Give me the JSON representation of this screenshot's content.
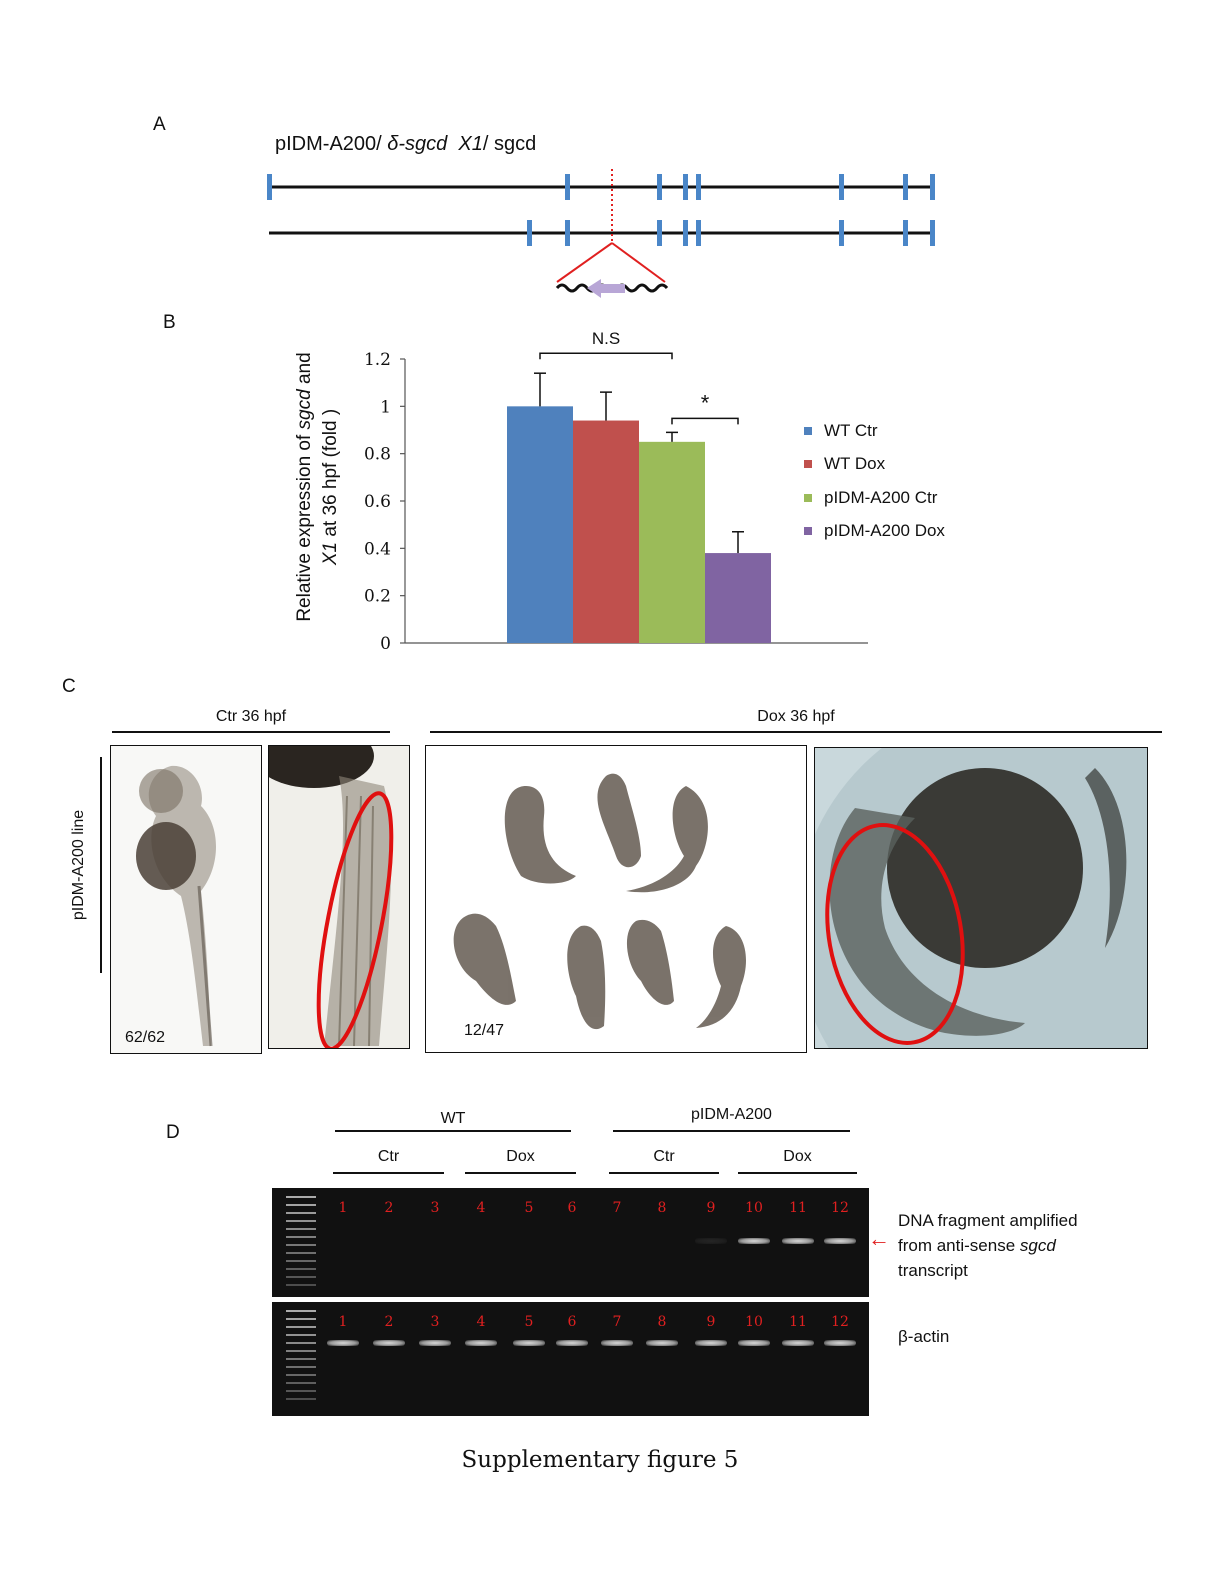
{
  "panels": {
    "a": "A",
    "b": "B",
    "c": "C",
    "d": "D"
  },
  "panel_a": {
    "title_prefix": "pIDM-A200/ ",
    "title_delta": "δ-sgcd",
    "title_x1": "X1",
    "title_suffix": "/ sgcd",
    "track_color": "#111111",
    "exon_color": "#4a86c8",
    "insertion_color": "#e02020",
    "arrow_color": "#b8a6d6"
  },
  "chart_data": {
    "type": "bar",
    "ylabel_line1_prefix": "Relative expression of ",
    "ylabel_line1_ital": "sgcd",
    "ylabel_line1_suffix": " and",
    "ylabel_line2_ital": "X1",
    "ylabel_line2_suffix": " at 36 hpf (fold )",
    "ylim": [
      0,
      1.2
    ],
    "yticks": [
      "0",
      "0.2",
      "0.4",
      "0.6",
      "0.8",
      "1",
      "1.2"
    ],
    "series": [
      {
        "name": "WT Ctr",
        "value": 1.0,
        "error": 0.14,
        "color": "#4f81bd"
      },
      {
        "name": "WT Dox",
        "value": 0.94,
        "error": 0.12,
        "color": "#c0504d"
      },
      {
        "name": "pIDM-A200 Ctr",
        "value": 0.85,
        "error": 0.04,
        "color": "#9bbb59"
      },
      {
        "name": "pIDM-A200 Dox",
        "value": 0.38,
        "error": 0.09,
        "color": "#8064a2"
      }
    ],
    "annotations": {
      "ns": "N.S",
      "star": "*"
    },
    "legend_position": "right"
  },
  "panel_c": {
    "ctr_header": "Ctr 36 hpf",
    "dox_header": "Dox 36 hpf",
    "side_label": "pIDM-A200 line",
    "ctr_count": "62/62",
    "dox_count": "12/47",
    "circle_color": "#e01010"
  },
  "panel_d": {
    "wt_label": "WT",
    "pidm_label": "pIDM-A200",
    "ctr1": "Ctr",
    "dox1": "Dox",
    "ctr2": "Ctr",
    "dox2": "Dox",
    "lanes": [
      "1",
      "2",
      "3",
      "4",
      "5",
      "6",
      "7",
      "8",
      "9",
      "10",
      "11",
      "12"
    ],
    "antisense_label_line1": "DNA fragment amplified",
    "antisense_label_line2": "from anti-sense ",
    "antisense_label_ital": "sgcd",
    "antisense_label_line3": "transcript",
    "actin_label": "β-actin",
    "antisense_band_fraction": [
      0,
      0,
      0,
      0,
      0,
      0,
      0,
      0,
      0.1,
      1,
      1,
      1
    ],
    "actin_band_fraction": [
      1,
      1,
      1,
      1,
      1,
      1,
      1,
      1,
      1,
      1,
      1,
      1
    ]
  },
  "caption": "Supplementary figure 5"
}
